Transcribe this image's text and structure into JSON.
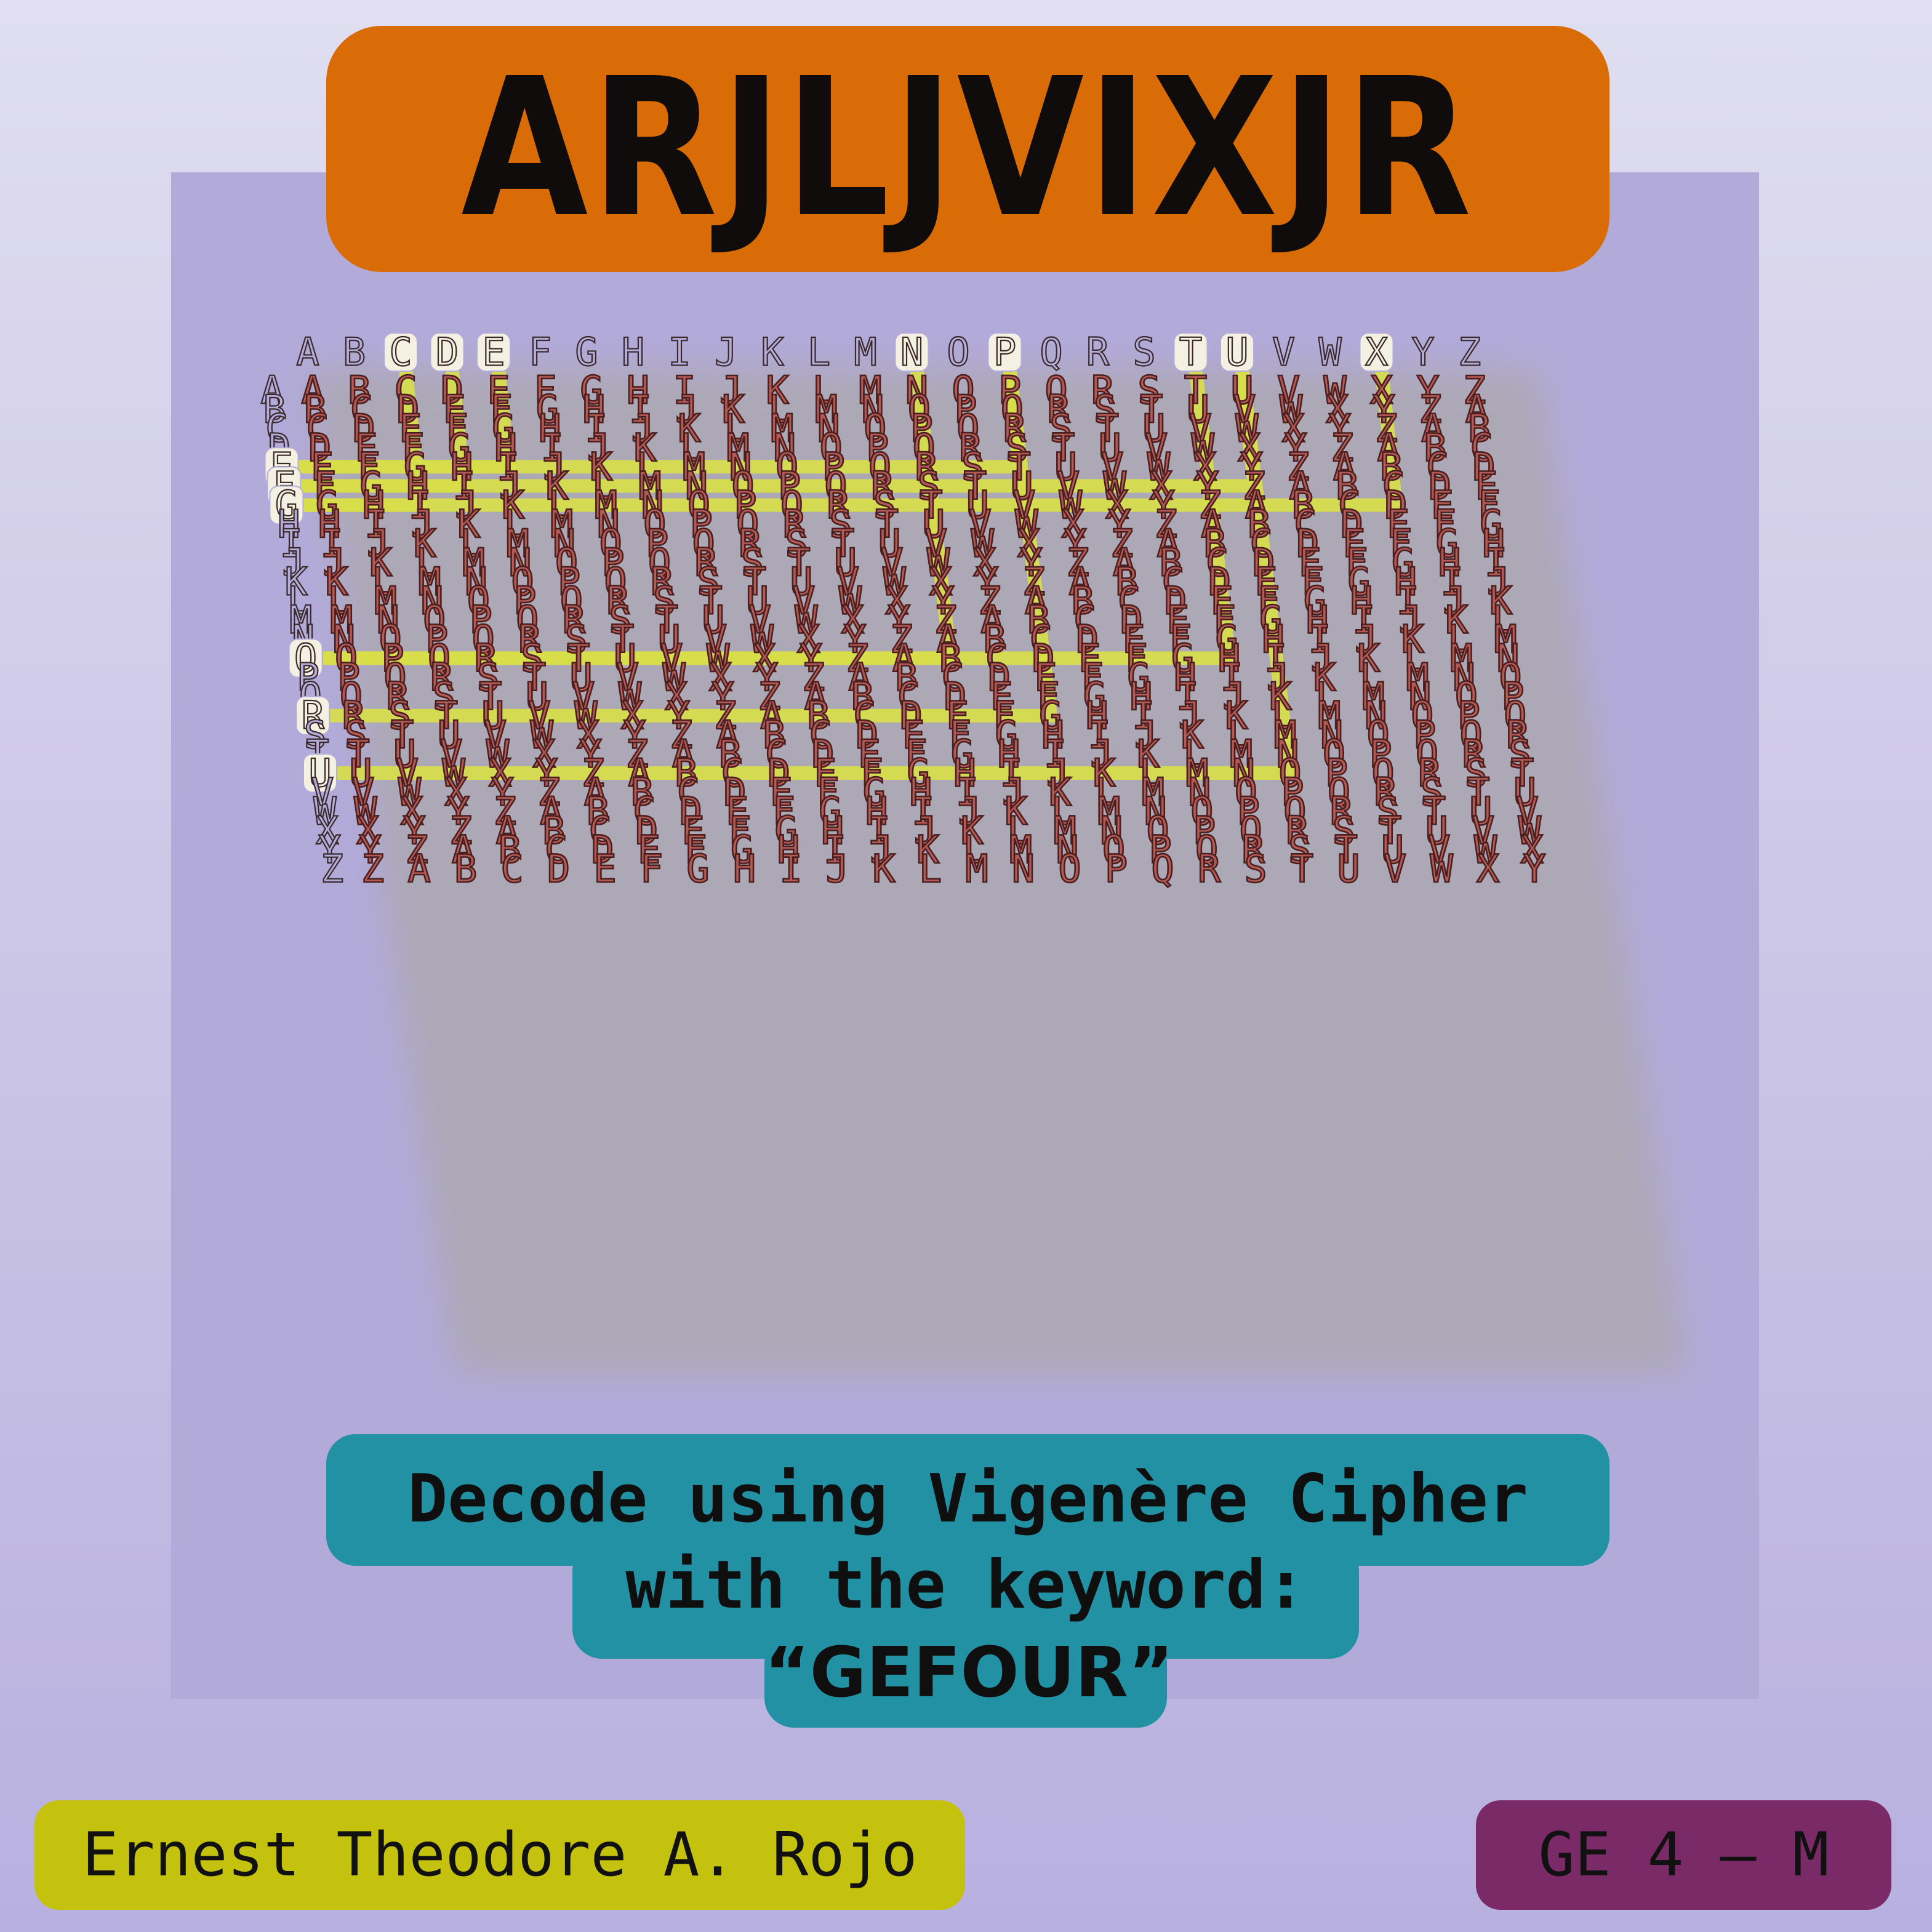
{
  "title": "ARJLJVIXJR",
  "alphabet": "ABCDEFGHIJKLMNOPQRSTUVWXYZ",
  "highlighted_columns": [
    "C",
    "D",
    "E",
    "N",
    "P",
    "T",
    "U",
    "X"
  ],
  "highlighted_rows": [
    "E",
    "F",
    "G",
    "O",
    "R",
    "U"
  ],
  "instructions": {
    "line1": "Decode using Vigenère Cipher",
    "line2": "with the keyword:",
    "line3": "“GEFOUR”"
  },
  "author": "Ernest Theodore A. Rojo",
  "section": "GE 4 – M",
  "colors": {
    "title_banner": "#d96c06",
    "instruction_pill": "#2191a3",
    "author_badge": "#c4c20f",
    "section_badge": "#7b2a68",
    "grid_letter_fill": "#b65a55",
    "path_highlight": "#d7de4a"
  }
}
